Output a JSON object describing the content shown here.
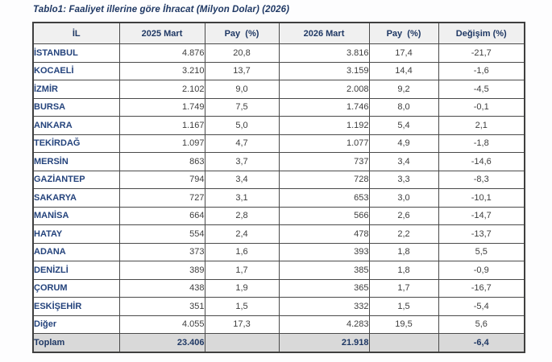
{
  "title": "Tablo1: Faaliyet illerine göre İhracat (Milyon Dolar) (2026)",
  "colors": {
    "title_navy": "#1f3864",
    "row_label_blue": "#24437c",
    "number_gray": "#3e3e3e",
    "header_bg": "#f0f0f0",
    "total_row_bg": "#d9d9d9",
    "border_gray": "#4a4a4a"
  },
  "table": {
    "columns": [
      "İL",
      "2025 Mart",
      "Pay  (%)",
      "2026 Mart",
      "Pay  (%)",
      "Değişim (%)"
    ],
    "rows": [
      [
        "İSTANBUL",
        "4.876",
        "20,8",
        "3.816",
        "17,4",
        "-21,7"
      ],
      [
        "KOCAELİ",
        "3.210",
        "13,7",
        "3.159",
        "14,4",
        "-1,6"
      ],
      [
        "İZMİR",
        "2.102",
        "9,0",
        "2.008",
        "9,2",
        "-4,5"
      ],
      [
        "BURSA",
        "1.749",
        "7,5",
        "1.746",
        "8,0",
        "-0,1"
      ],
      [
        "ANKARA",
        "1.167",
        "5,0",
        "1.192",
        "5,4",
        "2,1"
      ],
      [
        "TEKİRDAĞ",
        "1.097",
        "4,7",
        "1.077",
        "4,9",
        "-1,8"
      ],
      [
        "MERSİN",
        "863",
        "3,7",
        "737",
        "3,4",
        "-14,6"
      ],
      [
        "GAZİANTEP",
        "794",
        "3,4",
        "728",
        "3,3",
        "-8,3"
      ],
      [
        "SAKARYA",
        "727",
        "3,1",
        "653",
        "3,0",
        "-10,1"
      ],
      [
        "MANİSA",
        "664",
        "2,8",
        "566",
        "2,6",
        "-14,7"
      ],
      [
        "HATAY",
        "554",
        "2,4",
        "478",
        "2,2",
        "-13,7"
      ],
      [
        "ADANA",
        "373",
        "1,6",
        "393",
        "1,8",
        "5,5"
      ],
      [
        "DENİZLİ",
        "389",
        "1,7",
        "385",
        "1,8",
        "-0,9"
      ],
      [
        "ÇORUM",
        "438",
        "1,9",
        "365",
        "1,7",
        "-16,7"
      ],
      [
        "ESKİŞEHİR",
        "351",
        "1,5",
        "332",
        "1,5",
        "-5,4"
      ],
      [
        "Diğer",
        "4.055",
        "17,3",
        "4.283",
        "19,5",
        "5,6"
      ]
    ],
    "total_row": [
      "Toplam",
      "23.406",
      "",
      "21.918",
      "",
      "-6,4"
    ]
  }
}
